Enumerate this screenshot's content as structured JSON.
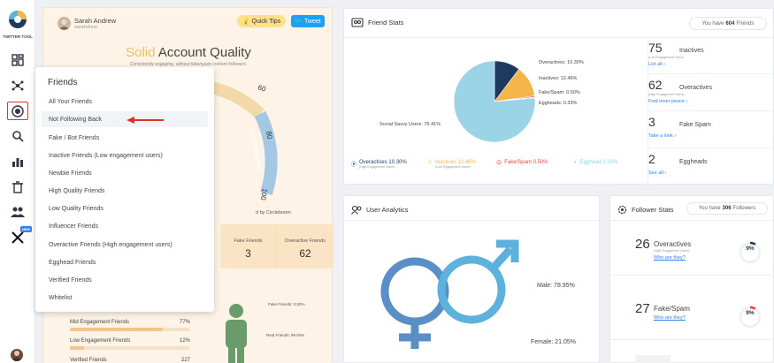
{
  "app": {
    "logo_text": "TWITTER TOOL",
    "new_badge": "NEW"
  },
  "colors": {
    "accent_blue": "#2f80ed",
    "male_blue": "#5db2dd",
    "female_blue": "#5a8ec6",
    "orange": "#f6b54a",
    "navy": "#1f3a5f"
  },
  "sidebar": {
    "icons": [
      "dashboard-icon",
      "network-icon",
      "target-icon",
      "search-icon",
      "stats-icon",
      "trash-icon",
      "users-icon",
      "x-logo-icon"
    ]
  },
  "quality": {
    "user_name": "Sarah Andrew",
    "user_handle": "sarahdrew",
    "quick_tips": "Quick Tips",
    "tweet": "Tweet",
    "title_solid": "Solid",
    "title_rest": "Account Quality",
    "subtitle": "Consistently engaging, without fake/spam content followers.",
    "gauge_label": "OUTSTANDING",
    "gauge_ticks": [
      "60",
      "80",
      "100"
    ],
    "credit": "d by Circleboom",
    "stats": [
      {
        "label": "Fake Friends",
        "value": "3"
      },
      {
        "label": "Overactive Friends",
        "value": "62"
      }
    ],
    "figure_labels": {
      "fake": "Fake Friends: 0.50%",
      "real": "Real Friends: 99.50%"
    },
    "bars": [
      {
        "label": "Mid Engagement Friends",
        "pct": "77%",
        "value": 77
      },
      {
        "label": "Low Engagement Friends",
        "pct": "12%",
        "value": 12
      },
      {
        "label": "Verified Friends",
        "pct": "227",
        "value": 0
      }
    ]
  },
  "dropdown": {
    "title": "Friends",
    "items": [
      "All Your Friends",
      "Not Following Back",
      "Fake / Bot Friends",
      "Inactive Friends (Low engagement users)",
      "Newbie Friends",
      "High Quality Friends",
      "Low Quality Friends",
      "Influencer Friends",
      "Overactive Friends (High engagement users)",
      "Egghead Friends",
      "Verified Friends",
      "Whitelist"
    ]
  },
  "friend_stats": {
    "title": "Friend Stats",
    "pill_prefix": "You have",
    "pill_count": "604",
    "pill_suffix": "Friends",
    "pie_labels": {
      "overactives": "Overactives: 10.30%",
      "inactives": "Inactives: 12.46%",
      "fake": "Fake/Spam: 0.50%",
      "eggheads": "Eggheads: 0.33%",
      "social": "Social Savvy Users: 76.41%"
    },
    "legend": [
      {
        "label": "Overactives 10.30%",
        "sub": "(High Engagement Users)",
        "color": "#1f3a5f"
      },
      {
        "label": "Inactives 12.46%",
        "sub": "(Low Engagement Users)",
        "color": "#f6b54a"
      },
      {
        "label": "Fake/Spam 0.50%",
        "sub": "",
        "color": "#e0463a"
      },
      {
        "label": "Egghead 0.33%",
        "sub": "",
        "color": "#8fd3e6"
      }
    ],
    "cells": [
      {
        "num": "75",
        "name": "Inactives",
        "sub": "(Low Engagement Users)",
        "link": "List all ›"
      },
      {
        "num": "62",
        "name": "Overactives",
        "sub": "(High Engagement Users)",
        "link": "Find inner peace ›"
      },
      {
        "num": "3",
        "name": "Fake Spam",
        "sub": "",
        "link": "Take a look ›"
      },
      {
        "num": "2",
        "name": "Eggheads",
        "sub": "",
        "link": "See all ›"
      }
    ]
  },
  "chart_data": {
    "type": "pie",
    "categories": [
      "Social Savvy Users",
      "Overactives",
      "Inactives",
      "Fake/Spam",
      "Eggheads"
    ],
    "values": [
      76.41,
      10.3,
      12.46,
      0.5,
      0.33
    ],
    "colors": [
      "#9ad4e6",
      "#1f3a5f",
      "#f6b54a",
      "#e0463a",
      "#c8c8c8"
    ]
  },
  "analytics": {
    "title": "User Analytics",
    "male": "Male: 78.95%",
    "female": "Female: 21.05%"
  },
  "follower": {
    "title": "Follower Stats",
    "pill_prefix": "You have",
    "pill_count": "306",
    "pill_suffix": "Followers",
    "rows": [
      {
        "num": "26",
        "name": "Overactives",
        "sub": "(High Engagement Users)",
        "link": "Who are they?",
        "pct": "9%",
        "value": 9,
        "color": "#1f3a5f"
      },
      {
        "num": "27",
        "name": "Fake/Spam",
        "sub": "",
        "link": "Who are they?",
        "pct": "9%",
        "value": 9,
        "color": "#e0463a"
      }
    ]
  }
}
